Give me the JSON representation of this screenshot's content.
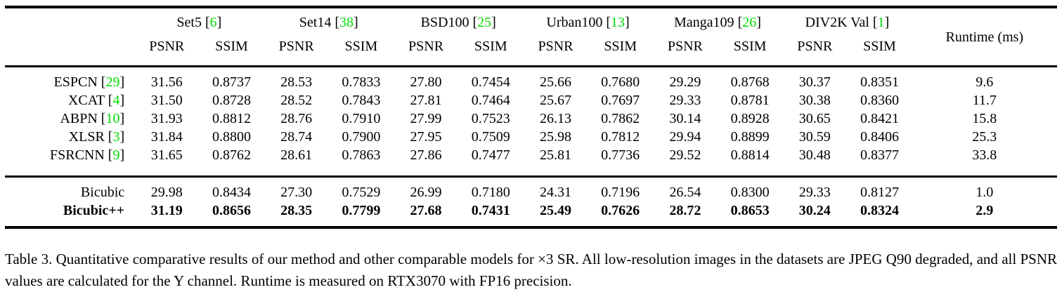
{
  "colors": {
    "citation_green": "#00DD00",
    "text": "#000000",
    "background": "#FFFFFF",
    "rule": "#000000"
  },
  "punctuation": {
    "bracket_open": "[",
    "bracket_close": "]"
  },
  "table": {
    "datasets": [
      {
        "name": "Set5",
        "cite": "6"
      },
      {
        "name": "Set14",
        "cite": "38"
      },
      {
        "name": "BSD100",
        "cite": "25"
      },
      {
        "name": "Urban100",
        "cite": "13"
      },
      {
        "name": "Manga109",
        "cite": "26"
      },
      {
        "name": "DIV2K Val",
        "cite": "1"
      }
    ],
    "metric_labels": [
      "PSNR",
      "SSIM"
    ],
    "runtime_label": "Runtime (ms)",
    "rows": [
      {
        "method": "ESPCN",
        "cite": "29",
        "v": [
          "31.56",
          "0.8737",
          "28.53",
          "0.7833",
          "27.80",
          "0.7454",
          "25.66",
          "0.7680",
          "29.29",
          "0.8768",
          "30.37",
          "0.8351"
        ],
        "runtime": "9.6"
      },
      {
        "method": "XCAT",
        "cite": "4",
        "v": [
          "31.50",
          "0.8728",
          "28.52",
          "0.7843",
          "27.81",
          "0.7464",
          "25.67",
          "0.7697",
          "29.33",
          "0.8781",
          "30.38",
          "0.8360"
        ],
        "runtime": "11.7"
      },
      {
        "method": "ABPN",
        "cite": "10",
        "v": [
          "31.93",
          "0.8812",
          "28.76",
          "0.7910",
          "27.99",
          "0.7523",
          "26.13",
          "0.7862",
          "30.14",
          "0.8928",
          "30.65",
          "0.8421"
        ],
        "runtime": "15.8"
      },
      {
        "method": "XLSR",
        "cite": "3",
        "v": [
          "31.84",
          "0.8800",
          "28.74",
          "0.7900",
          "27.95",
          "0.7509",
          "25.98",
          "0.7812",
          "29.94",
          "0.8899",
          "30.59",
          "0.8406"
        ],
        "runtime": "25.3"
      },
      {
        "method": "FSRCNN",
        "cite": "9",
        "v": [
          "31.65",
          "0.8762",
          "28.61",
          "0.7863",
          "27.86",
          "0.7477",
          "25.81",
          "0.7736",
          "29.52",
          "0.8814",
          "30.48",
          "0.8377"
        ],
        "runtime": "33.8"
      }
    ],
    "baseline_rows": [
      {
        "method": "Bicubic",
        "v": [
          "29.98",
          "0.8434",
          "27.30",
          "0.7529",
          "26.99",
          "0.7180",
          "24.31",
          "0.7196",
          "26.54",
          "0.8300",
          "29.33",
          "0.8127"
        ],
        "runtime": "1.0"
      },
      {
        "method": "Bicubic++",
        "v": [
          "31.19",
          "0.8656",
          "28.35",
          "0.7799",
          "27.68",
          "0.7431",
          "25.49",
          "0.7626",
          "28.72",
          "0.8653",
          "30.24",
          "0.8324"
        ],
        "runtime": "2.9"
      }
    ]
  },
  "caption": "Table 3. Quantitative comparative results of our method and other comparable models for ×3 SR. All low-resolution images in the datasets are JPEG Q90 degraded, and all PSNR values are calculated for the Y channel. Runtime is measured on RTX3070 with FP16 precision."
}
